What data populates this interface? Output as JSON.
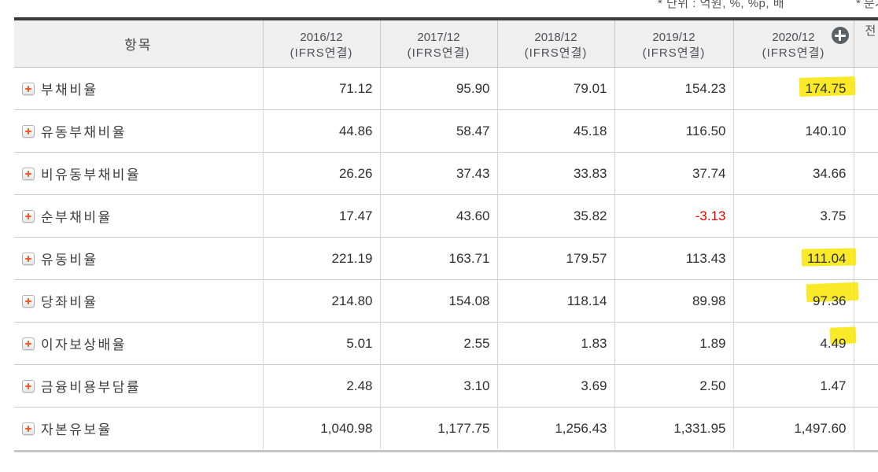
{
  "notes": {
    "unit_note": "* 단위 : 억원, %, %p, 배",
    "quarter_note": "* 분기"
  },
  "table": {
    "item_header": "항목",
    "columns": [
      {
        "period": "2016/12",
        "basis": "(IFRS연결)"
      },
      {
        "period": "2017/12",
        "basis": "(IFRS연결)"
      },
      {
        "period": "2018/12",
        "basis": "(IFRS연결)"
      },
      {
        "period": "2019/12",
        "basis": "(IFRS연결)"
      },
      {
        "period": "2020/12",
        "basis": "(IFRS연결)",
        "has_add_icon": true
      }
    ],
    "next_column_partial": "전",
    "rows": [
      {
        "label": "부채비율",
        "values": [
          "71.12",
          "95.90",
          "79.01",
          "154.23",
          "174.75"
        ],
        "highlight": [
          4
        ],
        "negative": []
      },
      {
        "label": "유동부채비율",
        "values": [
          "44.86",
          "58.47",
          "45.18",
          "116.50",
          "140.10"
        ],
        "highlight": [],
        "negative": []
      },
      {
        "label": "비유동부채비율",
        "values": [
          "26.26",
          "37.43",
          "33.83",
          "37.74",
          "34.66"
        ],
        "highlight": [],
        "negative": []
      },
      {
        "label": "순부채비율",
        "values": [
          "17.47",
          "43.60",
          "35.82",
          "-3.13",
          "3.75"
        ],
        "highlight": [],
        "negative": [
          3
        ]
      },
      {
        "label": "유동비율",
        "values": [
          "221.19",
          "163.71",
          "179.57",
          "113.43",
          "111.04"
        ],
        "highlight": [
          4
        ],
        "negative": []
      },
      {
        "label": "당좌비율",
        "values": [
          "214.80",
          "154.08",
          "118.14",
          "89.98",
          "97.36"
        ],
        "highlight": [
          4
        ],
        "negative": []
      },
      {
        "label": "이자보상배율",
        "values": [
          "5.01",
          "2.55",
          "1.83",
          "1.89",
          "4.49"
        ],
        "highlight": [
          4
        ],
        "negative": []
      },
      {
        "label": "금융비용부담률",
        "values": [
          "2.48",
          "3.10",
          "3.69",
          "2.50",
          "1.47"
        ],
        "highlight": [],
        "negative": []
      },
      {
        "label": "자본유보율",
        "values": [
          "1,040.98",
          "1,177.75",
          "1,256.43",
          "1,331.95",
          "1,497.60"
        ],
        "highlight": [],
        "negative": []
      }
    ],
    "icons": {
      "row_expand": "plus-icon",
      "header_add_column": "plus-circle-icon"
    },
    "colors": {
      "highlight": "#f8e503",
      "negative": "#e60000",
      "header_bg": "#efefef",
      "row_expand_plus": "#f15a22",
      "add_circle_bg": "#596066"
    }
  }
}
